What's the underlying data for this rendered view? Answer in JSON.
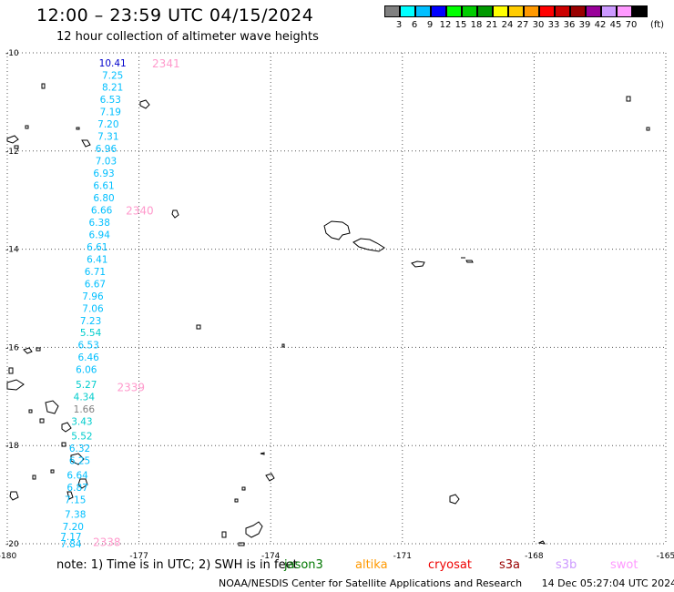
{
  "title": "12:00 – 23:59 UTC 04/15/2024",
  "subtitle": "12 hour collection of altimeter wave heights",
  "colorbar": {
    "unit": "(ft)",
    "levels": [
      {
        "label": "3",
        "color": "#808080"
      },
      {
        "label": "6",
        "color": "#00ffff"
      },
      {
        "label": "9",
        "color": "#00bfff"
      },
      {
        "label": "12",
        "color": "#0000ff"
      },
      {
        "label": "15",
        "color": "#00ff00"
      },
      {
        "label": "18",
        "color": "#00cc00"
      },
      {
        "label": "21",
        "color": "#009900"
      },
      {
        "label": "24",
        "color": "#ffff00"
      },
      {
        "label": "27",
        "color": "#ffcc00"
      },
      {
        "label": "30",
        "color": "#ff9900"
      },
      {
        "label": "33",
        "color": "#ff0000"
      },
      {
        "label": "36",
        "color": "#cc0000"
      },
      {
        "label": "39",
        "color": "#990000"
      },
      {
        "label": "42",
        "color": "#990099"
      },
      {
        "label": "45",
        "color": "#cc99ff"
      },
      {
        "label": "70",
        "color": "#ff99ff"
      },
      {
        "label": "",
        "color": "#000000"
      }
    ]
  },
  "axes": {
    "lon_ticks": [
      "-180",
      "-177",
      "-174",
      "-171",
      "-168",
      "-165"
    ],
    "lat_ticks": [
      "-10",
      "-12",
      "-14",
      "-16",
      "-18",
      "-20"
    ],
    "lon_range": [
      -180,
      -165
    ],
    "lat_range": [
      -20,
      -10
    ]
  },
  "passes": [
    {
      "id": "2341",
      "lat": -10.2
    },
    {
      "id": "2340",
      "lat": -13.2
    },
    {
      "id": "2339",
      "lat": -16.8
    },
    {
      "id": "2338",
      "lat": -19.95
    }
  ],
  "wave_heights": [
    {
      "lon": -177.6,
      "lat": -10.2,
      "value": "10.41",
      "color": "#0000cc"
    },
    {
      "lon": -177.6,
      "lat": -10.45,
      "value": "7.25",
      "color": "#00bfff"
    },
    {
      "lon": -177.6,
      "lat": -10.7,
      "value": "8.21",
      "color": "#00bfff"
    },
    {
      "lon": -177.65,
      "lat": -10.95,
      "value": "6.53",
      "color": "#00bfff"
    },
    {
      "lon": -177.65,
      "lat": -11.2,
      "value": "7.19",
      "color": "#00bfff"
    },
    {
      "lon": -177.7,
      "lat": -11.45,
      "value": "7.20",
      "color": "#00bfff"
    },
    {
      "lon": -177.7,
      "lat": -11.7,
      "value": "7.31",
      "color": "#00bfff"
    },
    {
      "lon": -177.75,
      "lat": -11.95,
      "value": "6.96",
      "color": "#00bfff"
    },
    {
      "lon": -177.75,
      "lat": -12.2,
      "value": "7.03",
      "color": "#00bfff"
    },
    {
      "lon": -177.8,
      "lat": -12.45,
      "value": "6.93",
      "color": "#00bfff"
    },
    {
      "lon": -177.8,
      "lat": -12.7,
      "value": "6.61",
      "color": "#00bfff"
    },
    {
      "lon": -177.8,
      "lat": -12.95,
      "value": "6.80",
      "color": "#00bfff"
    },
    {
      "lon": -177.85,
      "lat": -13.2,
      "value": "6.66",
      "color": "#00bfff"
    },
    {
      "lon": -177.9,
      "lat": -13.45,
      "value": "6.38",
      "color": "#00bfff"
    },
    {
      "lon": -177.9,
      "lat": -13.7,
      "value": "6.94",
      "color": "#00bfff"
    },
    {
      "lon": -177.95,
      "lat": -13.95,
      "value": "6.61",
      "color": "#00bfff"
    },
    {
      "lon": -177.95,
      "lat": -14.2,
      "value": "6.41",
      "color": "#00bfff"
    },
    {
      "lon": -178.0,
      "lat": -14.45,
      "value": "6.71",
      "color": "#00bfff"
    },
    {
      "lon": -178.0,
      "lat": -14.7,
      "value": "6.67",
      "color": "#00bfff"
    },
    {
      "lon": -178.05,
      "lat": -14.95,
      "value": "7.96",
      "color": "#00bfff"
    },
    {
      "lon": -178.05,
      "lat": -15.2,
      "value": "7.06",
      "color": "#00bfff"
    },
    {
      "lon": -178.1,
      "lat": -15.45,
      "value": "7.23",
      "color": "#00bfff"
    },
    {
      "lon": -178.1,
      "lat": -15.7,
      "value": "5.54",
      "color": "#00cccc"
    },
    {
      "lon": -178.15,
      "lat": -15.95,
      "value": "6.53",
      "color": "#00bfff"
    },
    {
      "lon": -178.15,
      "lat": -16.2,
      "value": "6.46",
      "color": "#00bfff"
    },
    {
      "lon": -178.2,
      "lat": -16.45,
      "value": "6.06",
      "color": "#00bfff"
    },
    {
      "lon": -178.2,
      "lat": -16.75,
      "value": "5.27",
      "color": "#00cccc"
    },
    {
      "lon": -178.25,
      "lat": -17.0,
      "value": "4.34",
      "color": "#00cccc"
    },
    {
      "lon": -178.25,
      "lat": -17.25,
      "value": "1.66",
      "color": "#808080"
    },
    {
      "lon": -178.3,
      "lat": -17.5,
      "value": "3.43",
      "color": "#00cccc"
    },
    {
      "lon": -178.3,
      "lat": -17.8,
      "value": "5.52",
      "color": "#00cccc"
    },
    {
      "lon": -178.35,
      "lat": -18.05,
      "value": "6.32",
      "color": "#00bfff"
    },
    {
      "lon": -178.35,
      "lat": -18.3,
      "value": "6.25",
      "color": "#00bfff"
    },
    {
      "lon": -178.4,
      "lat": -18.6,
      "value": "6.64",
      "color": "#00bfff"
    },
    {
      "lon": -178.4,
      "lat": -18.85,
      "value": "6.87",
      "color": "#00bfff"
    },
    {
      "lon": -178.45,
      "lat": -19.1,
      "value": "7.15",
      "color": "#00bfff"
    },
    {
      "lon": -178.45,
      "lat": -19.4,
      "value": "7.38",
      "color": "#00bfff"
    },
    {
      "lon": -178.5,
      "lat": -19.65,
      "value": "7.20",
      "color": "#00bfff"
    },
    {
      "lon": -178.55,
      "lat": -19.85,
      "value": "7.17",
      "color": "#00bfff"
    },
    {
      "lon": -178.55,
      "lat": -20.0,
      "value": "7.84",
      "color": "#00bfff"
    }
  ],
  "footer": {
    "note": "note: 1) Time is in UTC; 2) SWH is in feet",
    "missions": [
      {
        "name": "jason3",
        "color": "#007700"
      },
      {
        "name": "altika",
        "color": "#ff9900"
      },
      {
        "name": "cryosat",
        "color": "#ee0000"
      },
      {
        "name": "s3a",
        "color": "#990000"
      },
      {
        "name": "s3b",
        "color": "#cc99ff"
      },
      {
        "name": "swot",
        "color": "#ff99ff"
      }
    ],
    "credit": "NOAA/NESDIS Center for Satellite Applications and Research",
    "timestamp": "14 Dec 05:27:04 UTC 2024"
  }
}
